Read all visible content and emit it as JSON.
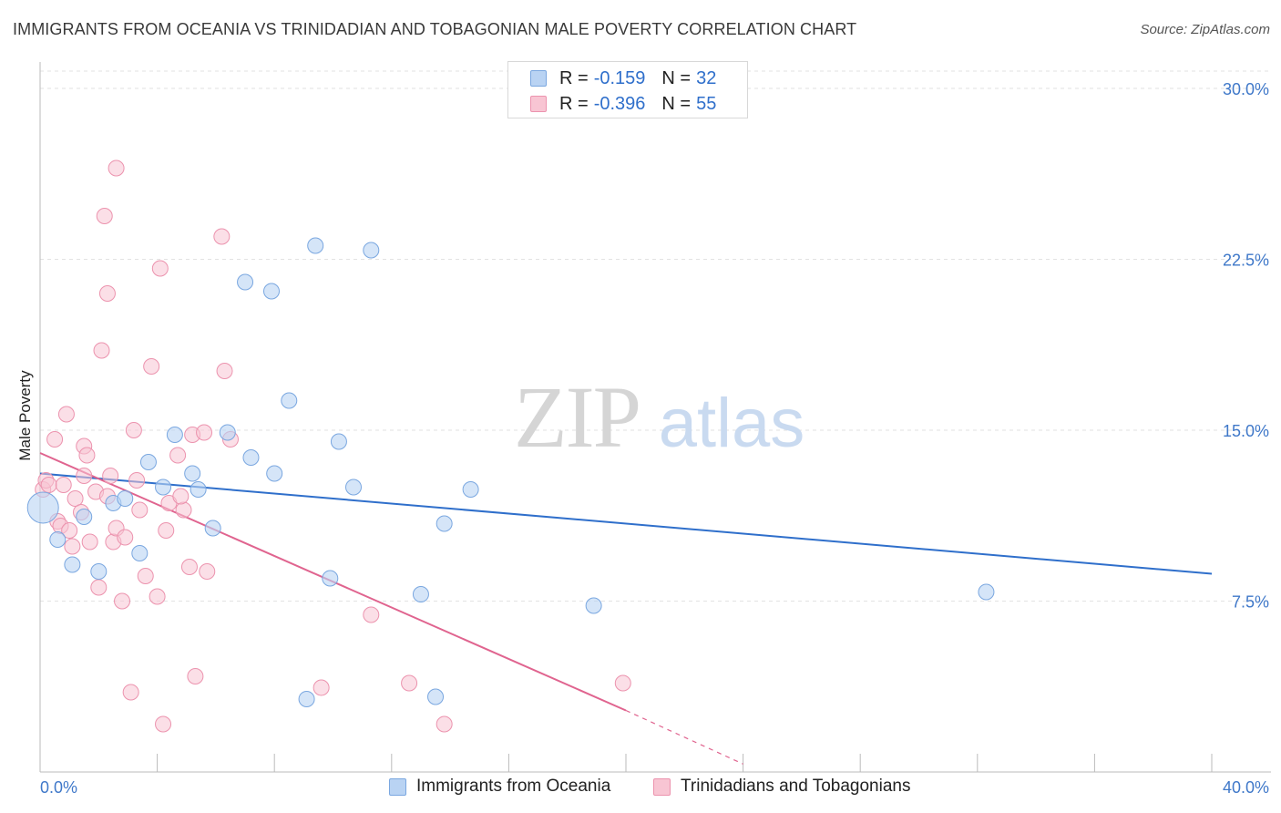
{
  "header": {
    "title": "IMMIGRANTS FROM OCEANIA VS TRINIDADIAN AND TOBAGONIAN MALE POVERTY CORRELATION CHART",
    "source": "Source: ZipAtlas.com"
  },
  "watermark": {
    "zip": "ZIP",
    "atlas": "atlas"
  },
  "legend": {
    "series1": {
      "r_label": "R =",
      "r_value": "-0.159",
      "n_label": "N =",
      "n_value": "32"
    },
    "series2": {
      "r_label": "R =",
      "r_value": "-0.396",
      "n_label": "N =",
      "n_value": "55"
    }
  },
  "colors": {
    "blue_fill": "#b9d3f3",
    "blue_stroke": "#7aa7e0",
    "blue_line": "#2f6fcb",
    "pink_fill": "#f8c5d3",
    "pink_stroke": "#ec93ae",
    "pink_line": "#e0648f",
    "axis_label": "#3f78c9",
    "grid": "#e2e2e2"
  },
  "chart_data": {
    "type": "scatter",
    "title": "IMMIGRANTS FROM OCEANIA VS TRINIDADIAN AND TOBAGONIAN MALE POVERTY CORRELATION CHART",
    "xlabel": "",
    "ylabel": "Male Poverty",
    "xlim": [
      0,
      40
    ],
    "ylim": [
      0,
      31.5
    ],
    "x_tick_labels": [
      "0.0%",
      "40.0%"
    ],
    "y_ticks": [
      7.5,
      15.0,
      22.5,
      30.0
    ],
    "y_tick_labels": [
      "7.5%",
      "15.0%",
      "22.5%",
      "30.0%"
    ],
    "grid": "horizontal dashed",
    "legend_position": "top-center",
    "series": [
      {
        "name": "Immigrants from Oceania",
        "color": "#b9d3f3",
        "points": [
          [
            0.1,
            11.6
          ],
          [
            0.6,
            10.2
          ],
          [
            1.1,
            9.1
          ],
          [
            1.5,
            11.2
          ],
          [
            2.0,
            8.8
          ],
          [
            2.5,
            11.8
          ],
          [
            2.9,
            12.0
          ],
          [
            3.4,
            9.6
          ],
          [
            3.7,
            13.6
          ],
          [
            4.2,
            12.5
          ],
          [
            4.6,
            14.8
          ],
          [
            5.2,
            13.1
          ],
          [
            5.4,
            12.4
          ],
          [
            5.9,
            10.7
          ],
          [
            6.4,
            14.9
          ],
          [
            7.0,
            21.5
          ],
          [
            7.2,
            13.8
          ],
          [
            7.9,
            21.1
          ],
          [
            8.0,
            13.1
          ],
          [
            8.5,
            16.3
          ],
          [
            9.1,
            3.2
          ],
          [
            9.4,
            23.1
          ],
          [
            9.9,
            8.5
          ],
          [
            10.2,
            14.5
          ],
          [
            10.7,
            12.5
          ],
          [
            11.3,
            22.9
          ],
          [
            13.0,
            7.8
          ],
          [
            13.5,
            3.3
          ],
          [
            13.8,
            10.9
          ],
          [
            14.7,
            12.4
          ],
          [
            18.9,
            7.3
          ],
          [
            32.3,
            7.9
          ]
        ]
      },
      {
        "name": "Trinidadians and Tobagonians",
        "color": "#f8c5d3",
        "points": [
          [
            0.1,
            12.4
          ],
          [
            0.2,
            12.8
          ],
          [
            0.3,
            12.6
          ],
          [
            0.5,
            14.6
          ],
          [
            0.6,
            11.0
          ],
          [
            0.7,
            10.8
          ],
          [
            0.8,
            12.6
          ],
          [
            0.9,
            15.7
          ],
          [
            1.0,
            10.6
          ],
          [
            1.1,
            9.9
          ],
          [
            1.2,
            12.0
          ],
          [
            1.4,
            11.4
          ],
          [
            1.5,
            13.0
          ],
          [
            1.5,
            14.3
          ],
          [
            1.6,
            13.9
          ],
          [
            1.7,
            10.1
          ],
          [
            1.9,
            12.3
          ],
          [
            2.0,
            8.1
          ],
          [
            2.1,
            18.5
          ],
          [
            2.2,
            24.4
          ],
          [
            2.3,
            12.1
          ],
          [
            2.3,
            21.0
          ],
          [
            2.4,
            13.0
          ],
          [
            2.5,
            10.1
          ],
          [
            2.6,
            26.5
          ],
          [
            2.6,
            10.7
          ],
          [
            2.8,
            7.5
          ],
          [
            2.9,
            10.3
          ],
          [
            3.1,
            3.5
          ],
          [
            3.2,
            15.0
          ],
          [
            3.4,
            11.5
          ],
          [
            3.6,
            8.6
          ],
          [
            3.8,
            17.8
          ],
          [
            4.0,
            7.7
          ],
          [
            4.1,
            22.1
          ],
          [
            4.2,
            2.1
          ],
          [
            4.3,
            10.6
          ],
          [
            4.4,
            11.8
          ],
          [
            4.7,
            13.9
          ],
          [
            4.9,
            11.5
          ],
          [
            5.1,
            9.0
          ],
          [
            5.2,
            14.8
          ],
          [
            5.3,
            4.2
          ],
          [
            5.6,
            14.9
          ],
          [
            5.7,
            8.8
          ],
          [
            6.2,
            23.5
          ],
          [
            6.3,
            17.6
          ],
          [
            6.5,
            14.6
          ],
          [
            9.6,
            3.7
          ],
          [
            11.3,
            6.9
          ],
          [
            12.6,
            3.9
          ],
          [
            13.8,
            2.1
          ],
          [
            19.9,
            3.9
          ],
          [
            4.8,
            12.1
          ],
          [
            3.3,
            12.8
          ]
        ]
      }
    ],
    "trend_lines": [
      {
        "series": "Immigrants from Oceania",
        "x": [
          0,
          40
        ],
        "y": [
          13.1,
          8.7
        ]
      },
      {
        "series": "Trinidadians and Tobagonians",
        "x": [
          0,
          20
        ],
        "y": [
          14.0,
          2.7
        ],
        "dashed_extension": {
          "x": [
            20,
            24
          ],
          "y": [
            2.7,
            0.35
          ]
        }
      }
    ]
  },
  "bottom_legend": {
    "series1_label": "Immigrants from Oceania",
    "series2_label": "Trinidadians and Tobagonians"
  }
}
